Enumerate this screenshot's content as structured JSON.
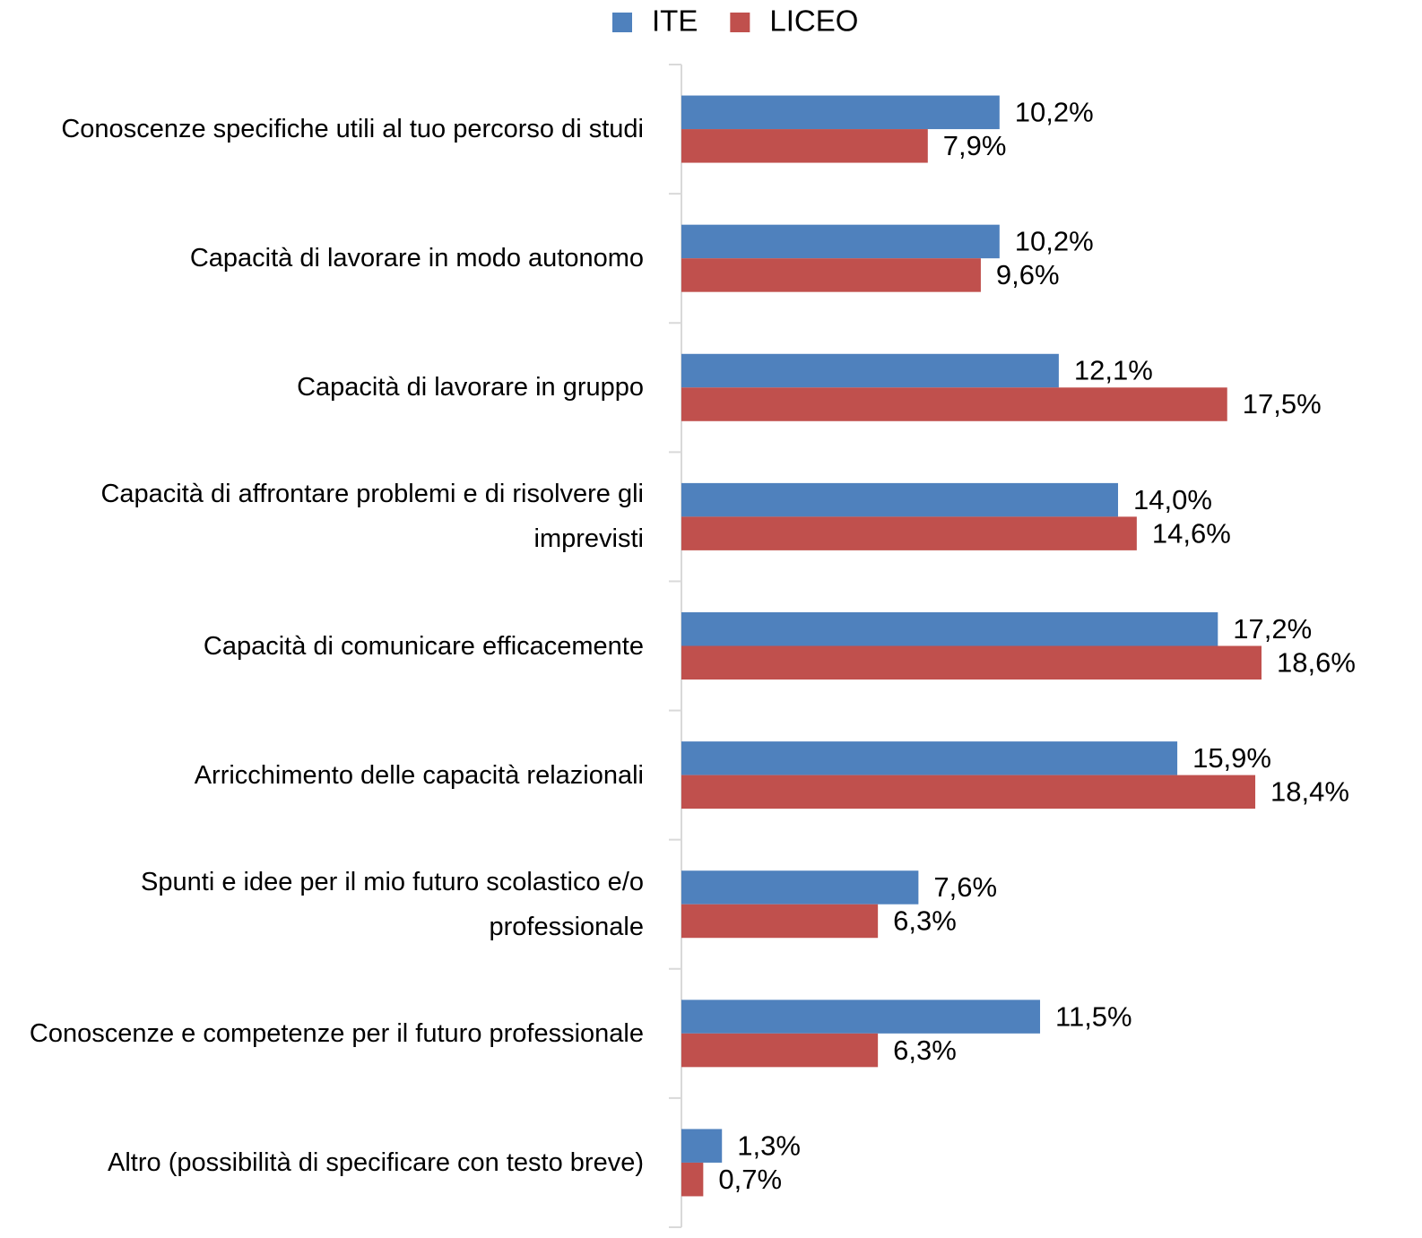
{
  "chart_data": {
    "type": "bar",
    "orientation": "horizontal",
    "categories": [
      "Conoscenze specifiche utili al tuo percorso di studi",
      "Capacità di lavorare in modo autonomo",
      "Capacità di lavorare in gruppo",
      "Capacità di affrontare problemi e di risolvere gli imprevisti",
      "Capacità di comunicare efficacemente",
      "Arricchimento delle capacità relazionali",
      "Spunti e idee per il mio futuro scolastico e/o professionale",
      "Conoscenze e competenze per il futuro professionale",
      "Altro (possibilità di specificare con testo breve)"
    ],
    "series": [
      {
        "name": "ITE",
        "color": "#4f81bd",
        "values": [
          10.2,
          10.2,
          12.1,
          14.0,
          17.2,
          15.9,
          7.6,
          11.5,
          1.3
        ],
        "value_labels": [
          "10,2%",
          "10,2%",
          "12,1%",
          "14,0%",
          "17,2%",
          "15,9%",
          "7,6%",
          "11,5%",
          "1,3%"
        ]
      },
      {
        "name": "LICEO",
        "color": "#c0504d",
        "values": [
          7.9,
          9.6,
          17.5,
          14.6,
          18.6,
          18.4,
          6.3,
          6.3,
          0.7
        ],
        "value_labels": [
          "7,9%",
          "9,6%",
          "17,5%",
          "14,6%",
          "18,6%",
          "18,4%",
          "6,3%",
          "6,3%",
          "0,7%"
        ]
      }
    ],
    "legend": "top"
  }
}
